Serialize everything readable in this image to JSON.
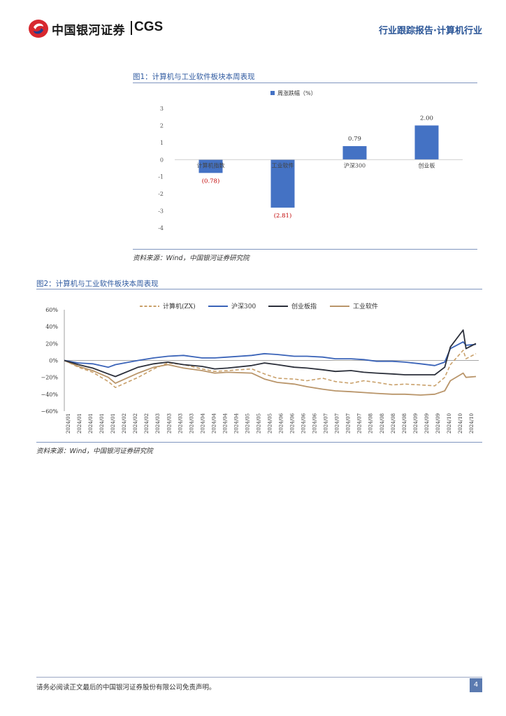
{
  "header": {
    "brand_cn": "中国银河证券",
    "brand_en": "CGS",
    "report_tag": "行业跟踪报告·计算机行业"
  },
  "figure1": {
    "title": "图1：计算机与工业软件板块本周表现",
    "source": "资料来源：Wind，中国银河证券研究院"
  },
  "figure2": {
    "title": "图2：计算机与工业软件板块本周表现",
    "source": "资料来源：Wind，中国银河证券研究院"
  },
  "footer": {
    "disclaimer": "请务必阅读正文最后的中国银河证券股份有限公司免责声明。",
    "page": "4"
  },
  "colors": {
    "bar": "#4472c4",
    "negative_label": "#c00000",
    "s_computer": "#c9a06a",
    "s_hs300": "#3a63b8",
    "s_chinext": "#2b2f3a",
    "s_software": "#b9956a",
    "accent": "#2a5597"
  },
  "chart_data": [
    {
      "type": "bar",
      "legend": "周涨跌幅（%）",
      "legend_position": "top",
      "categories": [
        "计算机指数",
        "工业软件",
        "沪深300",
        "创业板"
      ],
      "values": [
        -0.78,
        -2.81,
        0.79,
        2.0
      ],
      "value_labels": [
        "(0.78)",
        "(2.81)",
        "0.79",
        "2.00"
      ],
      "ylim": [
        -4,
        3
      ],
      "yticks": [
        "3",
        "2",
        "1",
        "0",
        "-1",
        "-2",
        "-3",
        "-4"
      ],
      "grid": false
    },
    {
      "type": "line",
      "legend_position": "top",
      "ylim": [
        -60,
        60
      ],
      "yticks": [
        "60%",
        "40%",
        "20%",
        "0%",
        "−20%",
        "−40%",
        "−60%"
      ],
      "xticks": [
        "2024/01",
        "2024/01",
        "2024/01",
        "2024/01",
        "2024/01",
        "2024/02",
        "2024/02",
        "2024/02",
        "2024/03",
        "2024/03",
        "2024/03",
        "2024/03",
        "2024/04",
        "2024/04",
        "2024/04",
        "2024/04",
        "2024/05",
        "2024/05",
        "2024/05",
        "2024/06",
        "2024/06",
        "2024/06",
        "2024/06",
        "2024/07",
        "2024/07",
        "2024/07",
        "2024/07",
        "2024/08",
        "2024/08",
        "2024/08",
        "2024/08",
        "2024/09",
        "2024/09",
        "2024/09",
        "2024/10",
        "2024/10",
        "2024/10"
      ],
      "x": [
        "2024/01/02",
        "2024/01/12",
        "2024/01/22",
        "2024/02/02",
        "2024/02/07",
        "2024/02/23",
        "2024/03/05",
        "2024/03/15",
        "2024/03/26",
        "2024/04/08",
        "2024/04/17",
        "2024/04/26",
        "2024/05/13",
        "2024/05/22",
        "2024/05/31",
        "2024/06/12",
        "2024/06/21",
        "2024/07/02",
        "2024/07/11",
        "2024/07/22",
        "2024/07/31",
        "2024/08/09",
        "2024/08/20",
        "2024/08/29",
        "2024/09/09",
        "2024/09/19",
        "2024/09/26",
        "2024/09/30",
        "2024/10/09",
        "2024/10/11",
        "2024/10/18"
      ],
      "series": [
        {
          "name": "计算机(ZX)",
          "style": "dashed",
          "values": [
            0,
            -8,
            -14,
            -25,
            -32,
            -20,
            -10,
            -3,
            -5,
            -10,
            -13,
            -12,
            -10,
            -16,
            -21,
            -22,
            -24,
            -21,
            -25,
            -27,
            -24,
            -26,
            -29,
            -28,
            -29,
            -30,
            -20,
            -5,
            12,
            2,
            8
          ]
        },
        {
          "name": "沪深300",
          "style": "solid",
          "values": [
            0,
            -3,
            -4,
            -8,
            -5,
            0,
            3,
            5,
            6,
            3,
            3,
            4,
            6,
            8,
            7,
            5,
            5,
            4,
            2,
            2,
            1,
            -1,
            -1,
            -2,
            -4,
            -6,
            -2,
            14,
            22,
            18,
            19
          ]
        },
        {
          "name": "创业板指",
          "style": "solid",
          "values": [
            0,
            -5,
            -9,
            -16,
            -19,
            -8,
            -4,
            -2,
            -5,
            -7,
            -10,
            -9,
            -6,
            -3,
            -5,
            -8,
            -9,
            -11,
            -13,
            -12,
            -14,
            -15,
            -16,
            -17,
            -17,
            -17,
            -8,
            16,
            36,
            14,
            20
          ]
        },
        {
          "name": "工业软件",
          "style": "solid",
          "values": [
            0,
            -7,
            -12,
            -20,
            -27,
            -15,
            -8,
            -5,
            -9,
            -12,
            -15,
            -14,
            -15,
            -22,
            -26,
            -28,
            -31,
            -34,
            -36,
            -37,
            -38,
            -39,
            -40,
            -40,
            -41,
            -40,
            -36,
            -24,
            -15,
            -20,
            -19
          ]
        }
      ],
      "grid": false
    }
  ]
}
